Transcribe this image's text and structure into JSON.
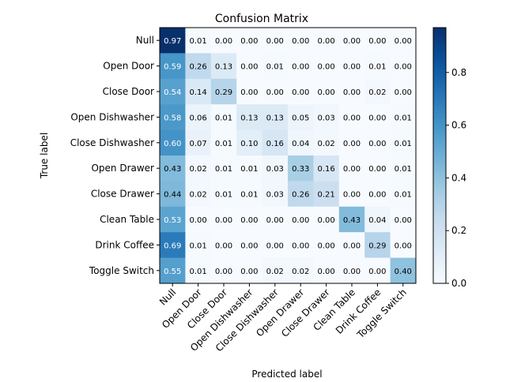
{
  "chart_data": {
    "type": "heatmap",
    "title": "Confusion Matrix",
    "xlabel": "Predicted label",
    "ylabel": "True label",
    "colormap": "Blues",
    "colorbar": {
      "range": [
        0.0,
        0.97
      ],
      "ticks": [
        0.0,
        0.2,
        0.4,
        0.6,
        0.8
      ],
      "tick_labels": [
        "0.0",
        "0.2",
        "0.4",
        "0.6",
        "0.8"
      ]
    },
    "row_labels": [
      "Null",
      "Open Door",
      "Close Door",
      "Open Dishwasher",
      "Close Dishwasher",
      "Open Drawer",
      "Close Drawer",
      "Clean Table",
      "Drink Coffee",
      "Toggle Switch"
    ],
    "col_labels": [
      "Null",
      "Open Door",
      "Close Door",
      "Open Dishwasher",
      "Close Dishwasher",
      "Open Drawer",
      "Close Drawer",
      "Clean Table",
      "Drink Coffee",
      "Toggle Switch"
    ],
    "values": [
      [
        0.97,
        0.01,
        0.0,
        0.0,
        0.0,
        0.0,
        0.0,
        0.0,
        0.0,
        0.0
      ],
      [
        0.59,
        0.26,
        0.13,
        0.0,
        0.01,
        0.0,
        0.0,
        0.0,
        0.01,
        0.0
      ],
      [
        0.54,
        0.14,
        0.29,
        0.0,
        0.0,
        0.0,
        0.0,
        0.0,
        0.02,
        0.0
      ],
      [
        0.58,
        0.06,
        0.01,
        0.13,
        0.13,
        0.05,
        0.03,
        0.0,
        0.0,
        0.01
      ],
      [
        0.6,
        0.07,
        0.01,
        0.1,
        0.16,
        0.04,
        0.02,
        0.0,
        0.0,
        0.01
      ],
      [
        0.43,
        0.02,
        0.01,
        0.01,
        0.03,
        0.33,
        0.16,
        0.0,
        0.0,
        0.01
      ],
      [
        0.44,
        0.02,
        0.01,
        0.01,
        0.03,
        0.26,
        0.21,
        0.0,
        0.0,
        0.01
      ],
      [
        0.53,
        0.0,
        0.0,
        0.0,
        0.0,
        0.0,
        0.0,
        0.43,
        0.04,
        0.0
      ],
      [
        0.69,
        0.01,
        0.0,
        0.0,
        0.0,
        0.0,
        0.0,
        0.0,
        0.29,
        0.0
      ],
      [
        0.55,
        0.01,
        0.0,
        0.0,
        0.02,
        0.02,
        0.0,
        0.0,
        0.0,
        0.4
      ]
    ]
  }
}
